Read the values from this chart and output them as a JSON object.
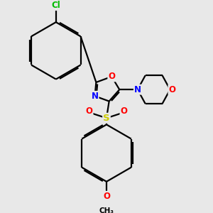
{
  "background_color": "#e8e8e8",
  "atom_colors": {
    "C": "#000000",
    "N": "#0000ff",
    "O": "#ff0000",
    "S": "#cccc00",
    "Cl": "#00bb00",
    "H": "#000000"
  },
  "bond_color": "#000000",
  "bond_width": 1.6,
  "bg": "#e8e8e8"
}
